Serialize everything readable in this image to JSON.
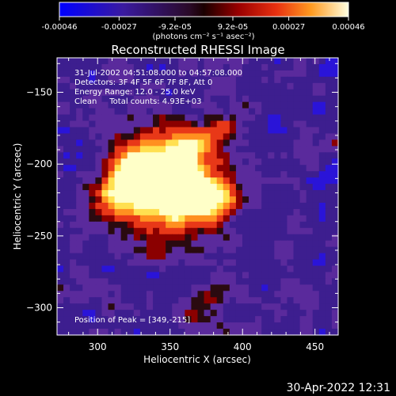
{
  "colorbar": {
    "ticks": [
      "-0.00046",
      "-0.00027",
      "-9.2e-05",
      "9.2e-05",
      "0.00027",
      "0.00046"
    ],
    "tick_values": [
      -0.00046,
      -0.00027,
      -9.2e-05,
      9.2e-05,
      0.00027,
      0.00046
    ],
    "range": [
      -0.00046,
      0.00046
    ],
    "unit_label": "(photons cm⁻² s⁻¹ asec⁻²)"
  },
  "annotations": [
    "31-Jul-2002 04:51:08.000 to 04:57:08.000",
    "Detectors: 3F 4F 5F 6F 7F 8F, Att 0",
    "Energy Range: 12.0 - 25.0 keV",
    "Clean     Total counts: 4.93E+03"
  ],
  "peak_label": "Position of Peak = [349,-215]",
  "footer_timestamp": "30-Apr-2022 12:31",
  "chart_data": {
    "type": "heatmap",
    "title": "Reconstructed RHESSI Image",
    "xlabel": "Heliocentric X (arcsec)",
    "ylabel": "Heliocentric Y (arcsec)",
    "xlim": [
      272,
      466
    ],
    "ylim": [
      -319,
      -126
    ],
    "xticks": [
      300,
      350,
      400,
      450
    ],
    "yticks": [
      -150,
      -200,
      -250,
      -300
    ],
    "peak": [
      349,
      -215
    ],
    "grid": false,
    "colors": {
      "scale": [
        "#1a1aff",
        "#2a14d8",
        "#3d1e8f",
        "#5a2a9c",
        "#2a0a10",
        "#8b0000",
        "#e83818",
        "#ff9020",
        "#ffe050",
        "#ffffc8"
      ],
      "background": "#000000",
      "text": "#ffffff"
    }
  }
}
